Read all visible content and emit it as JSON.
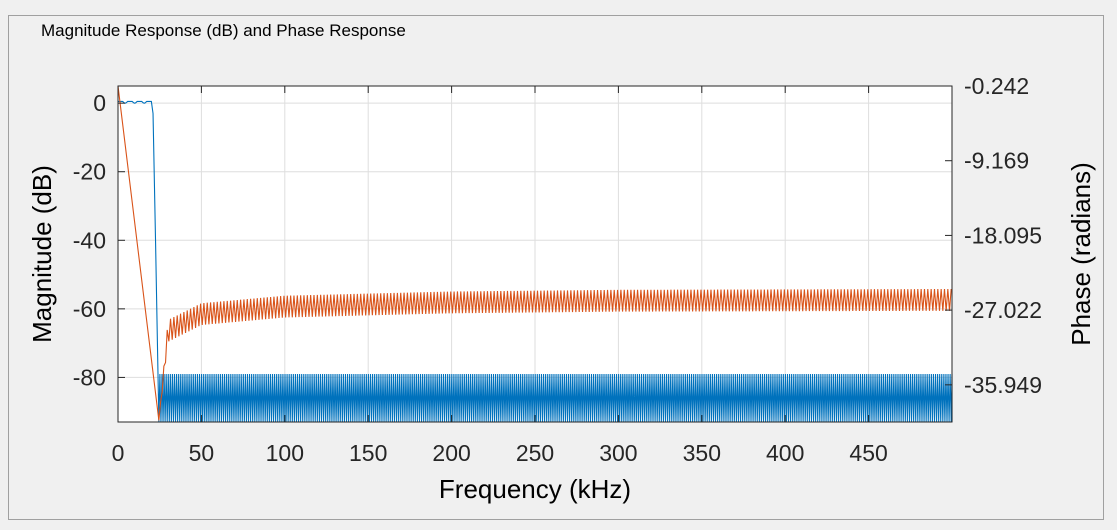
{
  "panel": {
    "title": "Magnitude Response (dB) and Phase Response"
  },
  "chart_data": {
    "type": "line",
    "xlabel": "Frequency (kHz)",
    "ylabel_left": "Magnitude (dB)",
    "ylabel_right": "Phase (radians)",
    "xlim": [
      0,
      500
    ],
    "ylim_left": [
      -93,
      5
    ],
    "ylim_right": [
      -40.39,
      -0.242
    ],
    "x_ticks": [
      "0",
      "50",
      "100",
      "150",
      "200",
      "250",
      "300",
      "350",
      "400",
      "450"
    ],
    "x_tick_values": [
      0,
      50,
      100,
      150,
      200,
      250,
      300,
      350,
      400,
      450
    ],
    "y_left_ticks": [
      "0",
      "-20",
      "-40",
      "-60",
      "-80"
    ],
    "y_left_tick_values": [
      0,
      -20,
      -40,
      -60,
      -80
    ],
    "y_right_ticks": [
      "-0.242",
      "-9.169",
      "-18.095",
      "-27.022",
      "-35.949"
    ],
    "y_right_tick_values": [
      -0.242,
      -9.169,
      -18.095,
      -27.022,
      -35.949
    ],
    "grid": true,
    "series": [
      {
        "axis": "left",
        "color": "#0072BD",
        "passband_edge_khz": 20,
        "stopband_edge_khz": 24.5,
        "passband_ripple_db": [
          0,
          1
        ],
        "stopband_floor_db": [
          -93,
          -79
        ],
        "points": [
          [
            0,
            0
          ],
          [
            20,
            0
          ],
          [
            21,
            -3
          ],
          [
            22.5,
            -40
          ],
          [
            24.5,
            -93
          ],
          [
            500,
            -79
          ]
        ]
      },
      {
        "axis": "right",
        "color": "#D95319",
        "points": [
          [
            0,
            -0.242
          ],
          [
            24.5,
            -40.2
          ],
          [
            30,
            -29.5
          ],
          [
            50,
            -27.5
          ],
          [
            100,
            -26.6
          ],
          [
            200,
            -26.1
          ],
          [
            300,
            -25.9
          ],
          [
            500,
            -25.8
          ]
        ],
        "ripple_radians": [
          -1.3,
          1.3
        ]
      }
    ]
  }
}
